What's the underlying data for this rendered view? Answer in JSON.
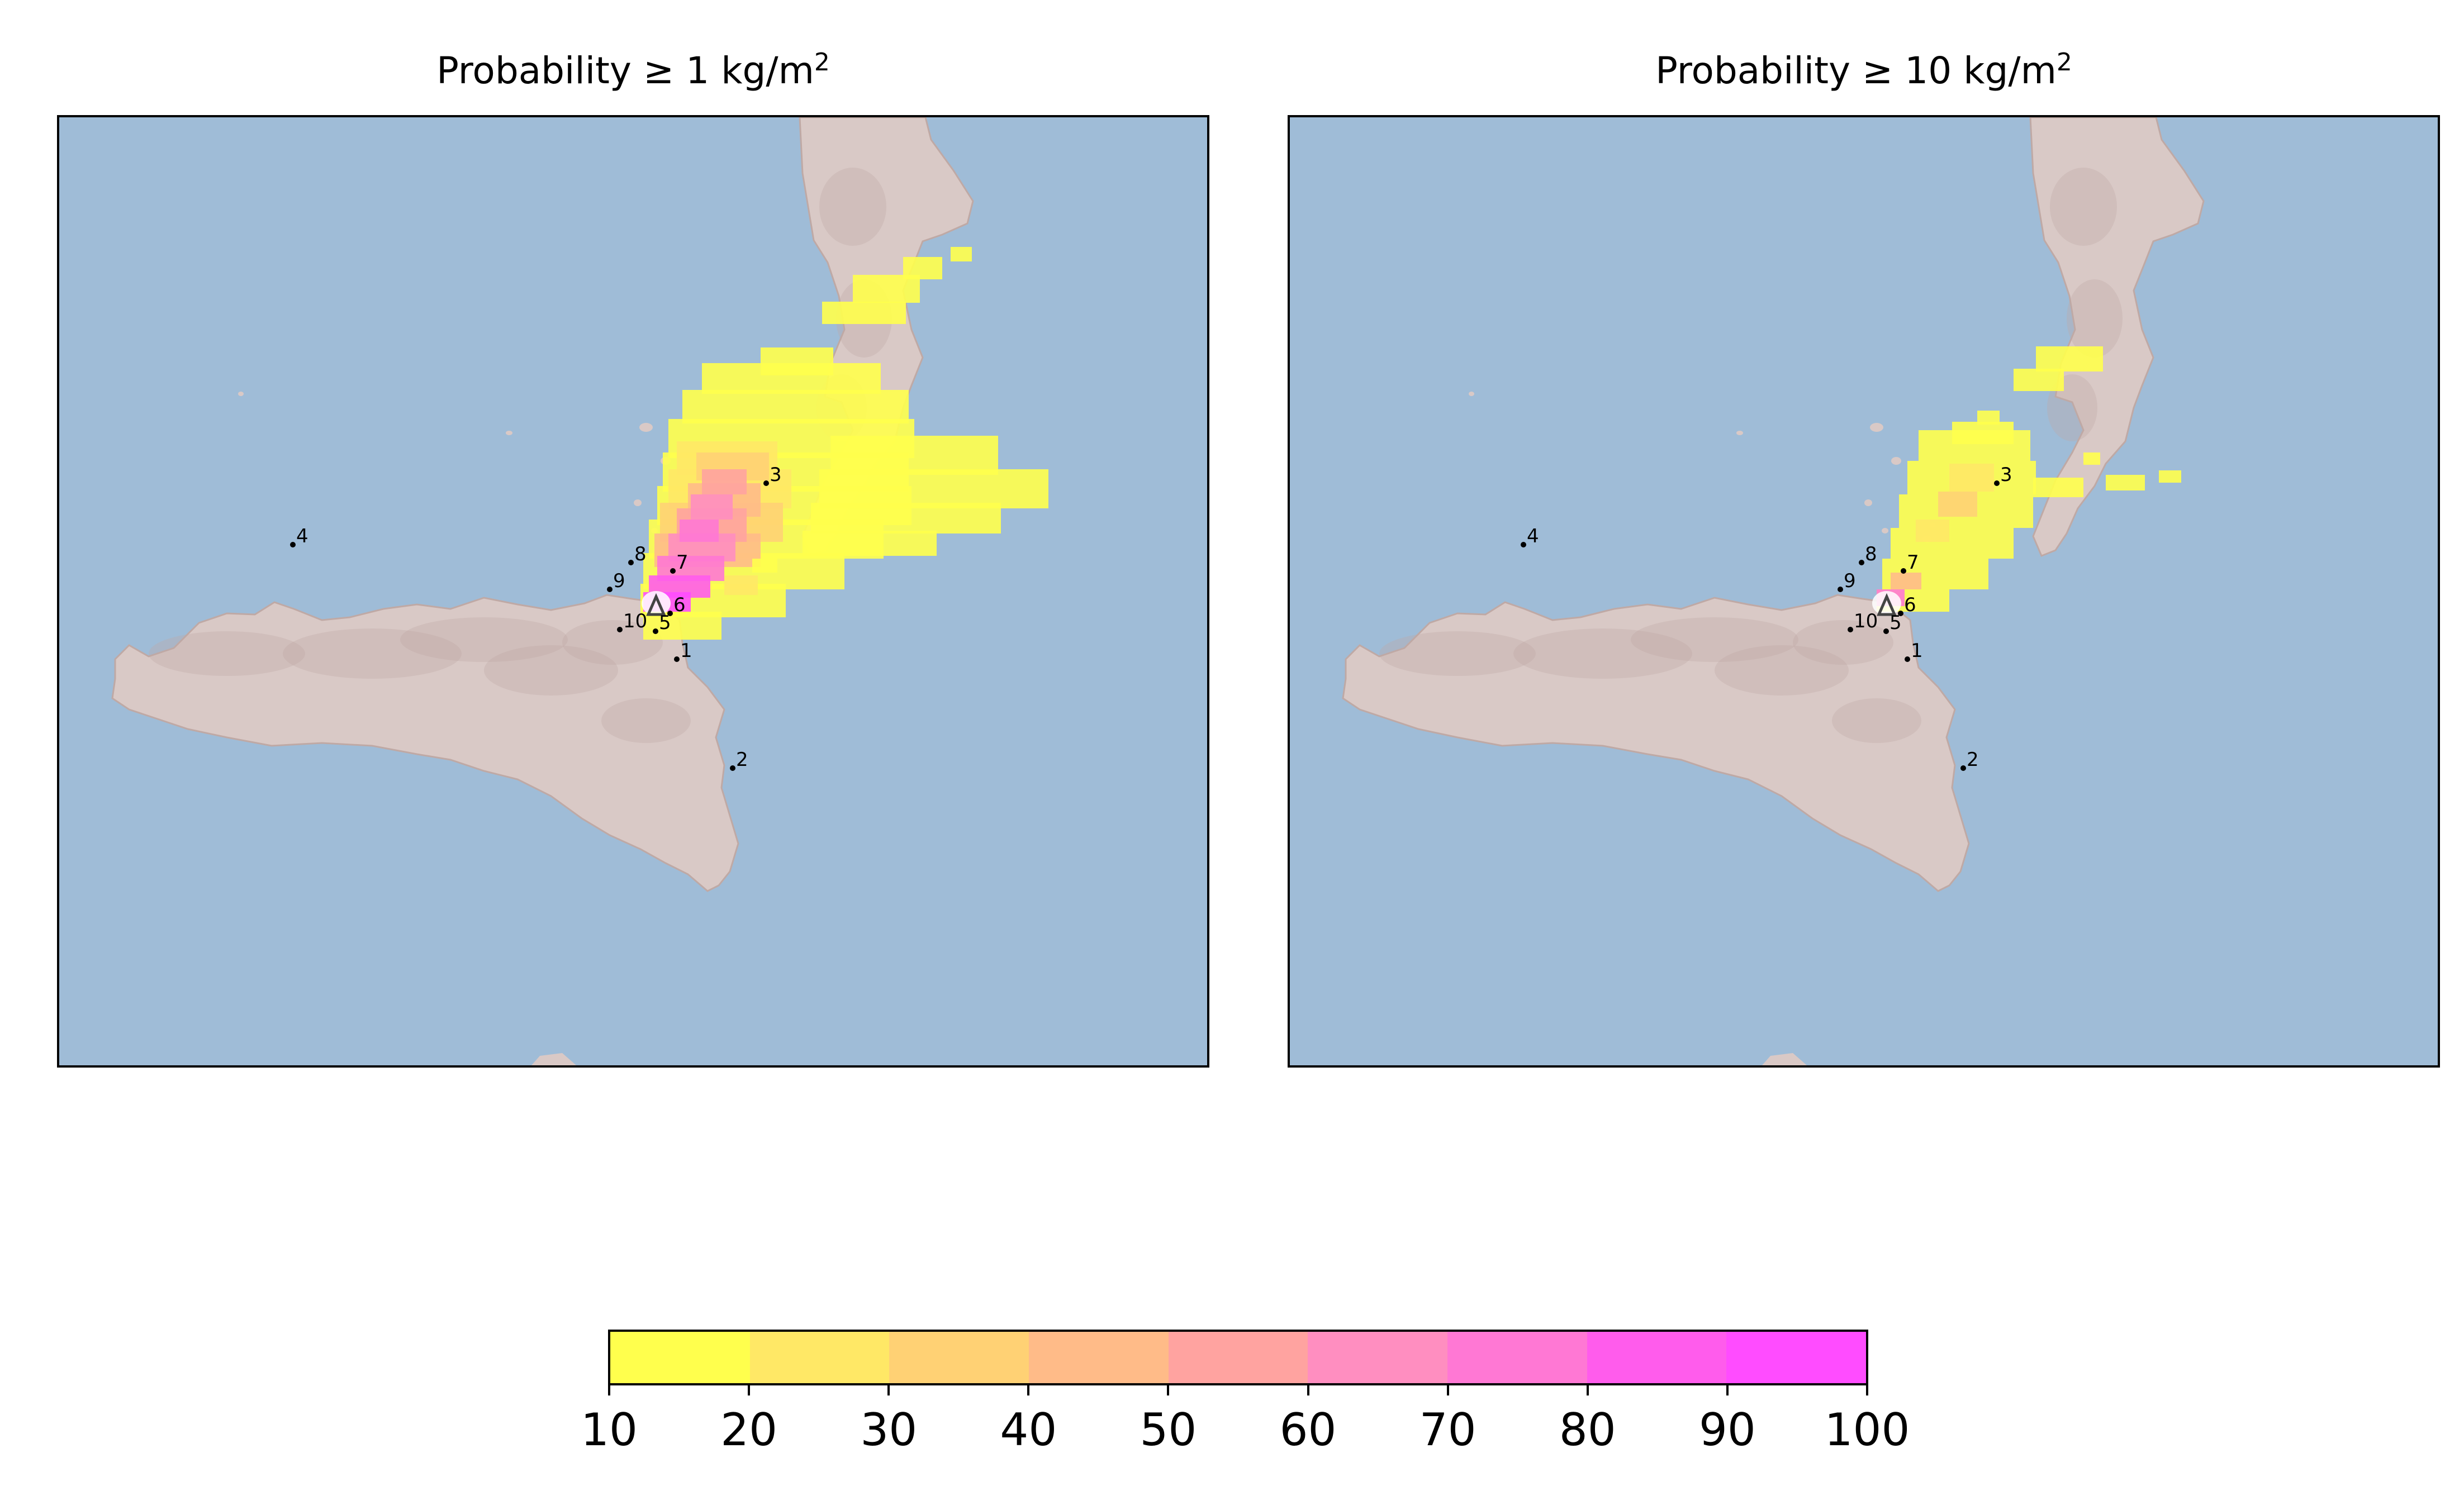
{
  "panels": [
    {
      "title": "Probability ≥ 1 kg/m",
      "title_sup": "2"
    },
    {
      "title": "Probability ≥ 10 kg/m",
      "title_sup": "2"
    }
  ],
  "stations": [
    "1",
    "2",
    "3",
    "4",
    "5",
    "6",
    "7",
    "8",
    "9",
    "10"
  ],
  "colors": {
    "sea": "#9fbcd7",
    "land": "#d9c9c6",
    "land_shadow": "#bfa9a5",
    "vent": "#444444"
  },
  "colorbar": {
    "ticks": [
      "10",
      "20",
      "30",
      "40",
      "50",
      "60",
      "70",
      "80",
      "90",
      "100"
    ],
    "bins": [
      {
        "from": 10,
        "to": 20,
        "color": "#ffff4d"
      },
      {
        "from": 20,
        "to": 30,
        "color": "#ffe866"
      },
      {
        "from": 30,
        "to": 40,
        "color": "#ffd174"
      },
      {
        "from": 40,
        "to": 50,
        "color": "#ffbb88"
      },
      {
        "from": 50,
        "to": 60,
        "color": "#ffa3a0"
      },
      {
        "from": 60,
        "to": 70,
        "color": "#ff8ec0"
      },
      {
        "from": 70,
        "to": 80,
        "color": "#ff78d4"
      },
      {
        "from": 80,
        "to": 90,
        "color": "#ff5cec"
      },
      {
        "from": 90,
        "to": 100,
        "color": "#ff4cff"
      }
    ]
  }
}
